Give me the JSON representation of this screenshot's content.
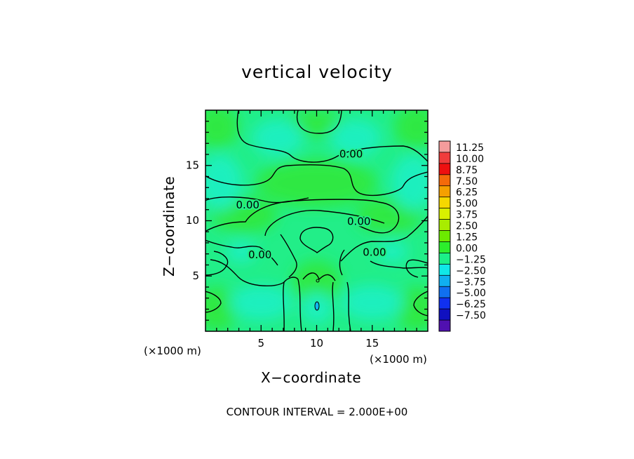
{
  "chart_data": {
    "type": "heatmap",
    "title": "vertical velocity",
    "xlabel": "X−coordinate",
    "ylabel": "Z−coordinate",
    "x_unit_label_left": "(×1000 m)",
    "x_unit_label_right": "(×1000 m)",
    "xlim": [
      0,
      20
    ],
    "ylim": [
      0,
      20
    ],
    "x_ticks": [
      5,
      10,
      15
    ],
    "y_ticks": [
      5,
      10,
      15
    ],
    "contour_interval_text": "CONTOUR INTERVAL = 2.000E+00",
    "contour_interval": 2.0,
    "contour_labels": [
      {
        "text": "0.00",
        "x": 13.1,
        "z": 16.0
      },
      {
        "text": "0.00",
        "x": 3.8,
        "z": 11.4
      },
      {
        "text": "0.00",
        "x": 13.8,
        "z": 9.9
      },
      {
        "text": "0.00",
        "x": 4.9,
        "z": 6.9
      },
      {
        "text": "0.00",
        "x": 15.2,
        "z": 7.1
      }
    ],
    "colorbar": {
      "labels": [
        "11.25",
        "10.00",
        "8.75",
        "7.50",
        "6.25",
        "5.00",
        "3.75",
        "2.50",
        "1.25",
        "0.00",
        "−1.25",
        "−2.50",
        "−3.75",
        "−5.00",
        "−6.25",
        "−7.50"
      ],
      "colors": [
        "#f49c9c",
        "#f03c3c",
        "#ee1010",
        "#f46a0a",
        "#f5a000",
        "#f5d800",
        "#d8f000",
        "#a8ec00",
        "#6cea00",
        "#2cee2c",
        "#1cf088",
        "#10e8e8",
        "#10b0f0",
        "#1070f0",
        "#1030f0",
        "#1010c0",
        "#5010b0"
      ]
    },
    "field_description_colors": {
      "background": "#22ee88",
      "weak_positive": "#30e838",
      "weak_negative": "#1cf0c8"
    }
  }
}
